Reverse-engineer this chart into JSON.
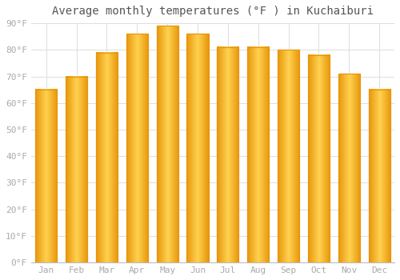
{
  "title": "Average monthly temperatures (°F ) in Kuchaiburi",
  "months": [
    "Jan",
    "Feb",
    "Mar",
    "Apr",
    "May",
    "Jun",
    "Jul",
    "Aug",
    "Sep",
    "Oct",
    "Nov",
    "Dec"
  ],
  "values": [
    65,
    70,
    79,
    86,
    89,
    86,
    81,
    81,
    80,
    78,
    71,
    65
  ],
  "bar_color_main": "#FDB92E",
  "bar_color_light": "#FFD966",
  "bar_color_dark": "#E8960C",
  "background_color": "#FFFFFF",
  "grid_color": "#DDDDDD",
  "ylim": [
    0,
    90
  ],
  "yticks": [
    0,
    10,
    20,
    30,
    40,
    50,
    60,
    70,
    80,
    90
  ],
  "ytick_labels": [
    "0°F",
    "10°F",
    "20°F",
    "30°F",
    "40°F",
    "50°F",
    "60°F",
    "70°F",
    "80°F",
    "90°F"
  ],
  "title_fontsize": 10,
  "tick_fontsize": 8,
  "font_color": "#AAAAAA",
  "title_color": "#555555"
}
